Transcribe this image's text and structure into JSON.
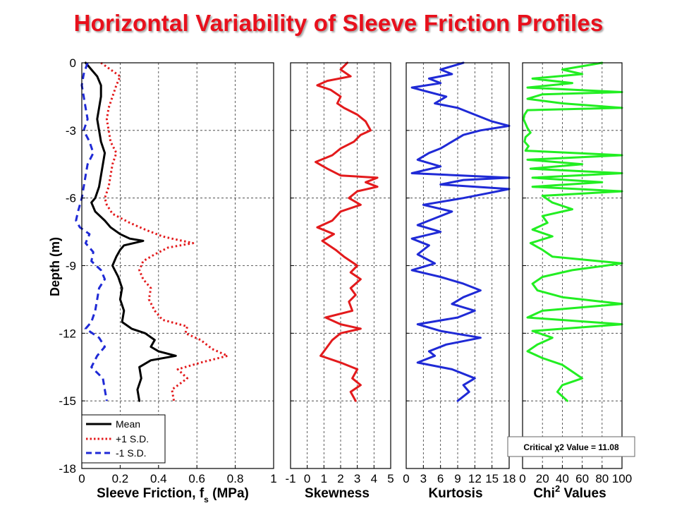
{
  "title": "Horizontal Variability of Sleeve Friction Profiles",
  "colors": {
    "title": "#e8101c",
    "mean": "#000000",
    "plus_sd": "#e31a1c",
    "minus_sd": "#1f2ad6",
    "skew": "#e31a1c",
    "kurt": "#1f2ad6",
    "chi": "#22ee22"
  },
  "chart_data": [
    {
      "type": "line",
      "xlabel": "Sleeve Friction, f",
      "xlabel_sub": "s",
      "xlabel_unit": " (MPa)",
      "ylabel": "Depth (m)",
      "xlim": [
        0,
        1
      ],
      "ylim": [
        -18,
        0
      ],
      "xticks": [
        "0",
        "0.2",
        "0.4",
        "0.6",
        "0.8",
        "1"
      ],
      "xtick_values": [
        0,
        0.2,
        0.4,
        0.6,
        0.8,
        1
      ],
      "yticks": [
        "0",
        "-3",
        "-6",
        "-9",
        "-12",
        "-15",
        "-18"
      ],
      "ytick_values": [
        0,
        -3,
        -6,
        -9,
        -12,
        -15,
        -18
      ],
      "grid": true,
      "legend": {
        "position": "bottom-left",
        "entries": [
          "Mean",
          "+1 S.D.",
          "-1 S.D."
        ]
      },
      "series": [
        {
          "name": "Mean",
          "style": "solid",
          "color": "#000000",
          "depth": [
            0,
            -0.3,
            -0.6,
            -1.0,
            -1.5,
            -2.0,
            -2.5,
            -3.0,
            -3.5,
            -4.0,
            -4.5,
            -5.0,
            -5.5,
            -6.0,
            -6.2,
            -6.6,
            -7.0,
            -7.3,
            -7.6,
            -7.8,
            -7.9,
            -8.1,
            -8.3,
            -8.6,
            -9.0,
            -9.5,
            -10.0,
            -10.5,
            -11.0,
            -11.5,
            -11.8,
            -12.0,
            -12.3,
            -12.6,
            -12.8,
            -13.0,
            -13.2,
            -13.5,
            -14.0,
            -14.5,
            -15.0
          ],
          "x": [
            0.02,
            0.05,
            0.08,
            0.1,
            0.1,
            0.09,
            0.08,
            0.09,
            0.1,
            0.12,
            0.11,
            0.1,
            0.09,
            0.07,
            0.05,
            0.07,
            0.12,
            0.15,
            0.2,
            0.25,
            0.32,
            0.22,
            0.2,
            0.18,
            0.16,
            0.19,
            0.21,
            0.2,
            0.22,
            0.21,
            0.26,
            0.33,
            0.38,
            0.36,
            0.4,
            0.49,
            0.36,
            0.3,
            0.31,
            0.29,
            0.3
          ]
        },
        {
          "name": "+1 S.D.",
          "style": "dotted",
          "color": "#e31a1c",
          "depth": [
            0,
            -0.3,
            -0.6,
            -1.0,
            -1.5,
            -2.0,
            -2.5,
            -3.0,
            -3.5,
            -4.0,
            -4.5,
            -5.0,
            -5.5,
            -6.0,
            -6.3,
            -6.7,
            -7.1,
            -7.4,
            -7.7,
            -7.8,
            -8.0,
            -8.2,
            -8.5,
            -8.8,
            -9.2,
            -9.6,
            -10.0,
            -10.5,
            -11.0,
            -11.4,
            -11.7,
            -12.0,
            -12.3,
            -12.7,
            -13.0,
            -13.3,
            -13.6,
            -14.0,
            -14.5,
            -15.0
          ],
          "x": [
            0.1,
            0.15,
            0.2,
            0.18,
            0.16,
            0.14,
            0.13,
            0.14,
            0.15,
            0.18,
            0.16,
            0.15,
            0.14,
            0.12,
            0.13,
            0.16,
            0.25,
            0.33,
            0.42,
            0.47,
            0.58,
            0.45,
            0.38,
            0.32,
            0.3,
            0.32,
            0.36,
            0.35,
            0.38,
            0.42,
            0.55,
            0.54,
            0.62,
            0.68,
            0.76,
            0.62,
            0.5,
            0.55,
            0.47,
            0.48
          ]
        },
        {
          "name": "-1 S.D.",
          "style": "dashed",
          "color": "#1f2ad6",
          "depth": [
            0,
            -0.5,
            -1.0,
            -1.5,
            -2.0,
            -2.5,
            -3.0,
            -3.5,
            -4.0,
            -4.5,
            -5.0,
            -5.5,
            -6.0,
            -6.3,
            -6.6,
            -7.0,
            -7.3,
            -7.6,
            -8.0,
            -8.4,
            -8.8,
            -9.2,
            -9.6,
            -10.0,
            -10.5,
            -11.0,
            -11.5,
            -11.8,
            -12.2,
            -12.6,
            -13.0,
            -13.5,
            -14.0,
            -14.5,
            -15.0
          ],
          "x": [
            0.03,
            0.01,
            0.0,
            0.01,
            0.02,
            0.03,
            0.01,
            0.04,
            0.06,
            0.03,
            0.02,
            0.01,
            0.0,
            -0.01,
            -0.02,
            -0.03,
            -0.01,
            0.04,
            0.02,
            0.06,
            0.05,
            0.1,
            0.12,
            0.09,
            0.08,
            0.07,
            0.05,
            0.02,
            0.09,
            0.12,
            0.08,
            0.05,
            0.11,
            0.12,
            0.13
          ]
        }
      ]
    },
    {
      "type": "line",
      "xlabel": "Skewness",
      "xlim": [
        -1,
        5
      ],
      "ylim": [
        -18,
        0
      ],
      "xticks": [
        "-1",
        "0",
        "1",
        "2",
        "3",
        "4",
        "5"
      ],
      "xtick_values": [
        -1,
        0,
        1,
        2,
        3,
        4,
        5
      ],
      "yticks": [],
      "grid": true,
      "series": [
        {
          "name": "",
          "color": "#e31a1c",
          "style": "solid",
          "depth": [
            0,
            -0.3,
            -0.6,
            -0.8,
            -1.0,
            -1.2,
            -1.5,
            -1.8,
            -2.0,
            -2.3,
            -2.6,
            -3.0,
            -3.2,
            -3.5,
            -3.8,
            -4.1,
            -4.4,
            -4.7,
            -5.0,
            -5.1,
            -5.3,
            -5.5,
            -5.7,
            -6.0,
            -6.3,
            -6.6,
            -7.0,
            -7.3,
            -7.6,
            -7.9,
            -8.3,
            -8.6,
            -9.0,
            -9.3,
            -9.6,
            -10.0,
            -10.3,
            -10.6,
            -11.0,
            -11.3,
            -11.6,
            -11.8,
            -12.0,
            -12.3,
            -12.6,
            -12.9,
            -13.0,
            -13.3,
            -13.6,
            -14.0,
            -14.3,
            -14.6,
            -15.0
          ],
          "x": [
            2.4,
            2.0,
            2.6,
            1.2,
            0.6,
            1.4,
            2.0,
            1.8,
            2.2,
            3.0,
            3.5,
            3.8,
            3.2,
            2.8,
            2.0,
            1.5,
            0.5,
            1.2,
            2.0,
            4.2,
            3.5,
            4.2,
            3.0,
            2.5,
            3.2,
            2.0,
            1.5,
            0.6,
            1.6,
            0.9,
            1.7,
            2.2,
            3.0,
            2.6,
            3.2,
            2.6,
            2.9,
            2.5,
            2.7,
            1.1,
            2.0,
            3.2,
            2.0,
            1.5,
            1.2,
            0.9,
            0.8,
            2.0,
            3.0,
            2.7,
            3.2,
            2.6,
            2.9
          ]
        }
      ]
    },
    {
      "type": "line",
      "xlabel": "Kurtosis",
      "xlim": [
        0,
        18
      ],
      "ylim": [
        -18,
        0
      ],
      "xticks": [
        "0",
        "3",
        "6",
        "9",
        "12",
        "15",
        "18"
      ],
      "xtick_values": [
        0,
        3,
        6,
        9,
        12,
        15,
        18
      ],
      "yticks": [],
      "grid": true,
      "series": [
        {
          "name": "",
          "color": "#1f2ad6",
          "style": "solid",
          "depth": [
            0,
            -0.3,
            -0.5,
            -0.7,
            -0.9,
            -1.1,
            -1.3,
            -1.5,
            -1.8,
            -2.0,
            -2.3,
            -2.6,
            -2.8,
            -3.0,
            -3.2,
            -3.5,
            -3.8,
            -4.0,
            -4.3,
            -4.6,
            -4.9,
            -5.1,
            -5.2,
            -5.4,
            -5.6,
            -5.8,
            -6.0,
            -6.3,
            -6.6,
            -6.9,
            -7.2,
            -7.5,
            -7.8,
            -8.1,
            -8.5,
            -8.9,
            -9.2,
            -9.5,
            -9.8,
            -10.1,
            -10.4,
            -10.7,
            -11.0,
            -11.3,
            -11.6,
            -11.9,
            -12.2,
            -12.5,
            -12.8,
            -13.0,
            -13.3,
            -13.6,
            -14.0,
            -14.3,
            -14.6,
            -15.0
          ],
          "x": [
            10,
            6,
            8,
            4,
            6,
            1,
            4,
            7,
            5,
            9,
            12,
            15,
            18,
            13,
            10,
            8,
            6,
            4,
            2,
            6,
            1,
            18,
            10,
            6,
            18,
            14,
            10,
            3,
            8,
            5,
            2,
            6,
            1,
            4,
            2,
            5,
            1,
            6,
            10,
            13,
            10,
            8,
            12,
            9,
            2,
            6,
            13,
            7,
            4,
            5,
            2,
            8,
            12,
            10,
            11,
            9
          ]
        }
      ]
    },
    {
      "type": "line",
      "xlabel": "Chi",
      "xlabel_sup": "2",
      "xlabel_unit": " Values",
      "xlim": [
        0,
        100
      ],
      "ylim": [
        -18,
        0
      ],
      "xticks": [
        "0",
        "20",
        "40",
        "60",
        "80",
        "100"
      ],
      "xtick_values": [
        0,
        20,
        40,
        60,
        80,
        100
      ],
      "yticks": [],
      "grid": true,
      "annotation": "Critical χ2 Value = 11.08",
      "series": [
        {
          "name": "",
          "color": "#22ee22",
          "style": "solid",
          "depth": [
            0,
            -0.3,
            -0.5,
            -0.7,
            -0.9,
            -1.1,
            -1.3,
            -1.4,
            -1.6,
            -1.8,
            -2.0,
            -2.1,
            -2.3,
            -2.5,
            -2.7,
            -2.9,
            -3.1,
            -3.3,
            -3.5,
            -3.7,
            -3.9,
            -4.1,
            -4.3,
            -4.5,
            -4.7,
            -4.9,
            -5.1,
            -5.3,
            -5.5,
            -5.7,
            -5.9,
            -6.2,
            -6.5,
            -6.8,
            -7.1,
            -7.4,
            -7.7,
            -8.0,
            -8.3,
            -8.6,
            -8.9,
            -9.2,
            -9.5,
            -9.8,
            -10.1,
            -10.4,
            -10.7,
            -11.0,
            -11.3,
            -11.6,
            -11.9,
            -12.2,
            -12.5,
            -12.8,
            -13.1,
            -13.4,
            -13.7,
            -14.0,
            -14.3,
            -14.6,
            -15.0
          ],
          "x": [
            80,
            40,
            60,
            10,
            50,
            5,
            100,
            20,
            5,
            40,
            100,
            5,
            2,
            1,
            3,
            5,
            8,
            3,
            2,
            6,
            3,
            100,
            5,
            60,
            8,
            100,
            10,
            80,
            10,
            100,
            20,
            30,
            50,
            20,
            25,
            10,
            30,
            8,
            20,
            30,
            100,
            50,
            20,
            10,
            15,
            40,
            100,
            20,
            5,
            100,
            10,
            30,
            15,
            5,
            20,
            40,
            50,
            60,
            40,
            35,
            45
          ]
        }
      ]
    }
  ]
}
